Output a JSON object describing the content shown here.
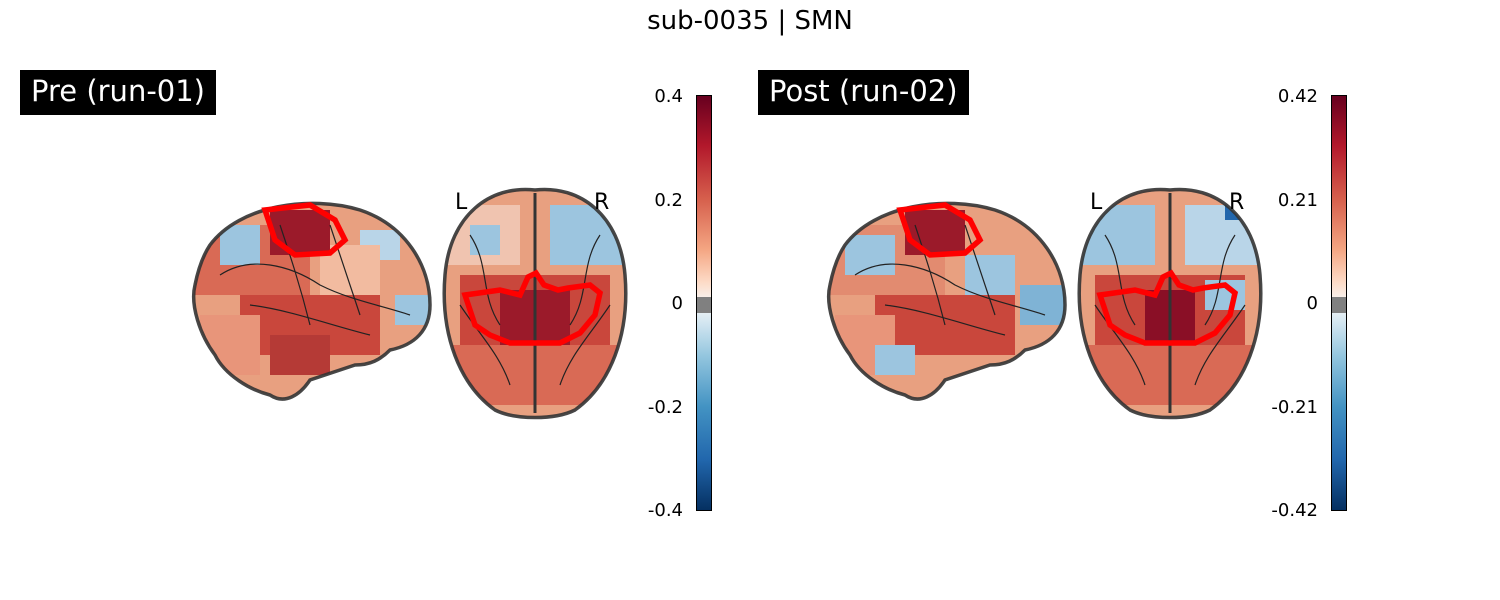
{
  "figure": {
    "title": "sub-0035 | SMN"
  },
  "panels": [
    {
      "label": "Pre (run-01)",
      "orientation": {
        "left": "L",
        "right": "R"
      },
      "colorbar": {
        "ticks": [
          "0.4",
          "0.2",
          "0",
          "-0.2",
          "-0.4"
        ],
        "vmin": -0.4,
        "vmax": 0.4
      }
    },
    {
      "label": "Post (run-02)",
      "orientation": {
        "left": "L",
        "right": "R"
      },
      "colorbar": {
        "ticks": [
          "0.42",
          "0.21",
          "0",
          "-0.21",
          "-0.42"
        ],
        "vmin": -0.42,
        "vmax": 0.42
      }
    }
  ],
  "colors": {
    "positive_max": "#67001f",
    "negative_max": "#053061",
    "roi_outline": "#ff0000",
    "brain_outline": "#333333"
  }
}
